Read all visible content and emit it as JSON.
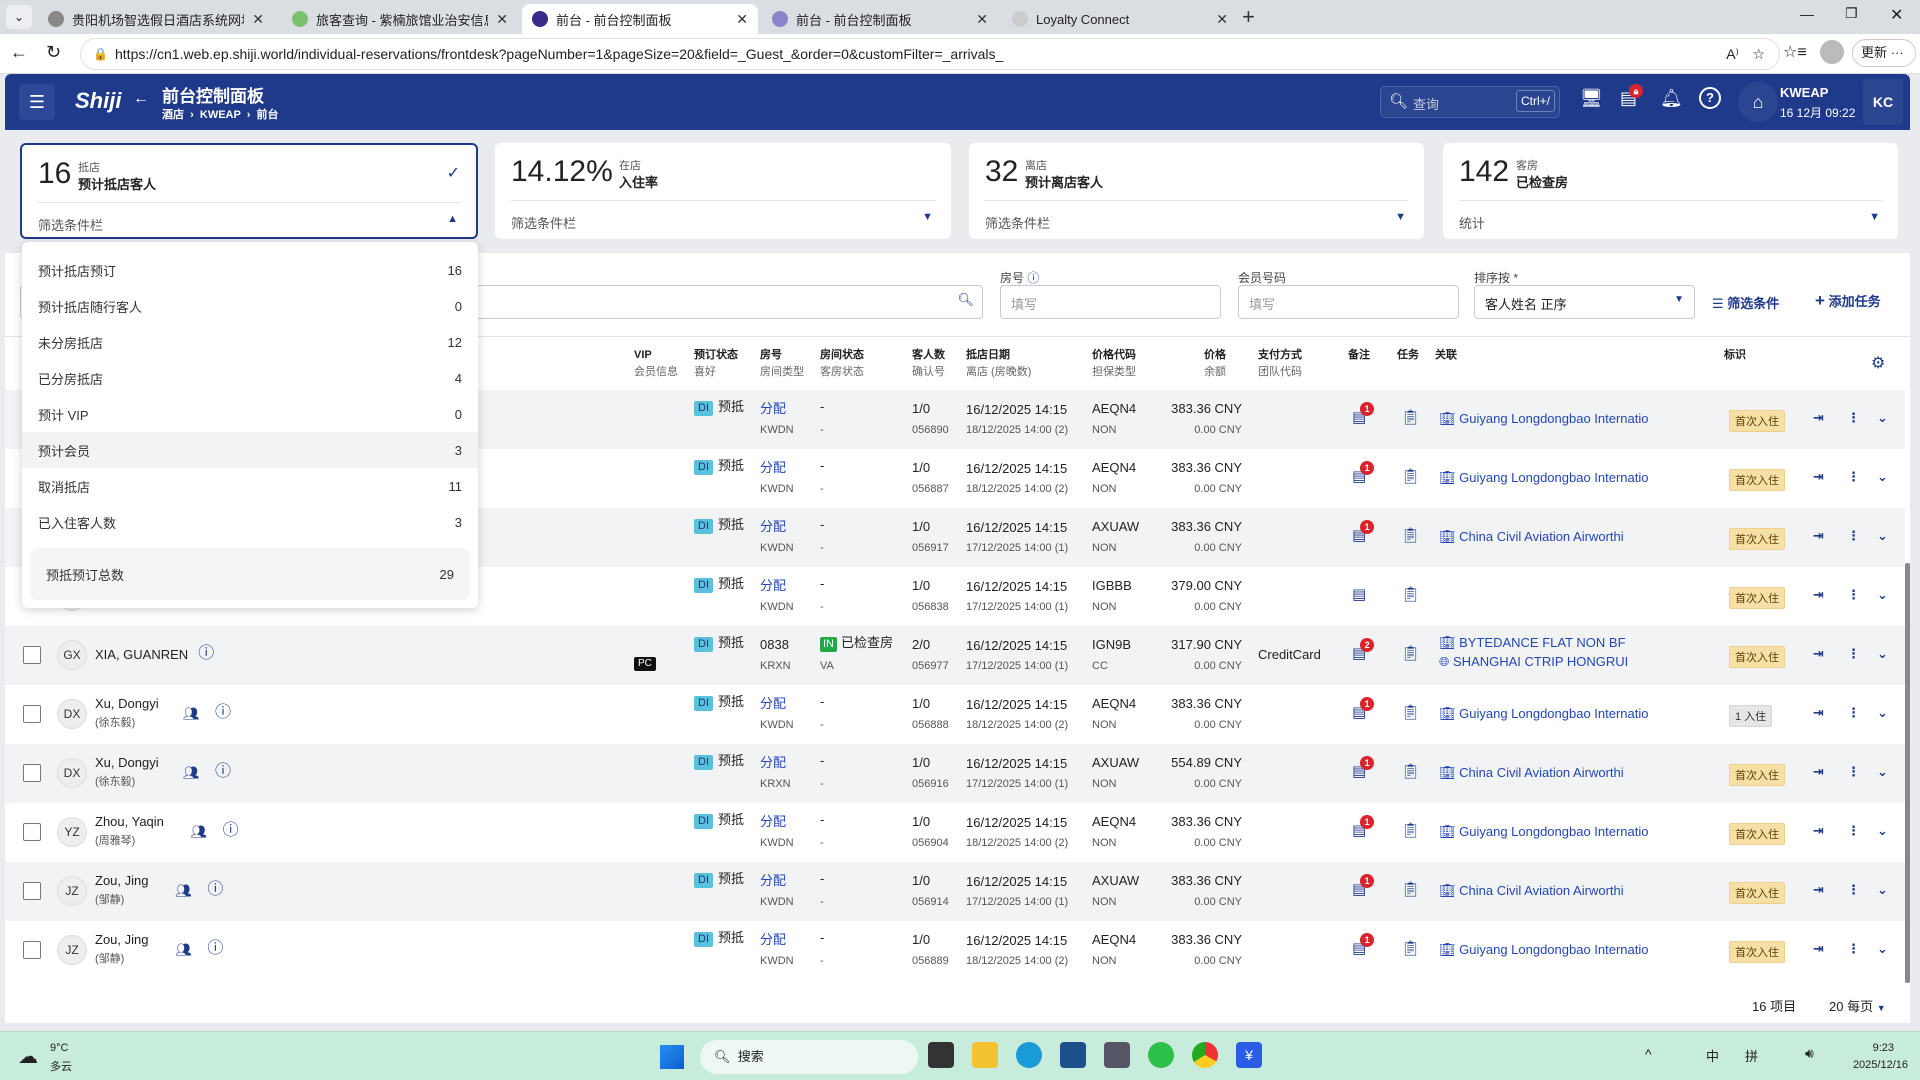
{
  "browser": {
    "tabs": [
      {
        "title": "贵阳机场智选假日酒店系统网址导",
        "active": false,
        "favicon": "globe-icon",
        "color": "#888"
      },
      {
        "title": "旅客查询 - 紫楠旅馆业治安信息管",
        "active": false,
        "favicon": "swirl-icon",
        "color": "#7bc26f"
      },
      {
        "title": "前台 - 前台控制面板",
        "active": true,
        "favicon": "shiji-icon",
        "color": "#3a2a8a"
      },
      {
        "title": "前台 - 前台控制面板",
        "active": false,
        "favicon": "shiji-icon",
        "color": "#8c84c8"
      },
      {
        "title": "Loyalty Connect",
        "active": false,
        "favicon": "page-icon",
        "color": "#ccc"
      }
    ],
    "url": "https://cn1.web.ep.shiji.world/individual-reservations/frontdesk?pageNumber=1&pageSize=20&field=_Guest_&order=0&customFilter=_arrivals_",
    "update_label": "更新"
  },
  "header": {
    "logo": "Shiji",
    "title": "前台控制面板",
    "breadcrumb": [
      "酒店",
      "KWEAP",
      "前台"
    ],
    "search_placeholder": "查询",
    "search_shortcut": "Ctrl+/",
    "property": "KWEAP",
    "datetime": "16 12月 09:22",
    "user_initials": "KC",
    "notification_badge": "1"
  },
  "cards": [
    {
      "value": "16",
      "small": "抵店",
      "label": "预计抵店客人",
      "filter": "筛选条件栏",
      "selected": true
    },
    {
      "value": "14.12%",
      "small": "在店",
      "label": "入住率",
      "filter": "筛选条件栏"
    },
    {
      "value": "32",
      "small": "离店",
      "label": "预计离店客人",
      "filter": "筛选条件栏"
    },
    {
      "value": "142",
      "small": "客房",
      "label": "已检查房",
      "filter": "统计"
    }
  ],
  "dropdown": {
    "items": [
      {
        "label": "预计抵店预订",
        "count": "16"
      },
      {
        "label": "预计抵店随行客人",
        "count": "0"
      },
      {
        "label": "未分房抵店",
        "count": "12"
      },
      {
        "label": "已分房抵店",
        "count": "4"
      },
      {
        "label": "预计 VIP",
        "count": "0"
      },
      {
        "label": "预计会员",
        "count": "3",
        "highlighted": true
      },
      {
        "label": "取消抵店",
        "count": "11"
      },
      {
        "label": "已入住客人数",
        "count": "3"
      }
    ],
    "total_label": "预抵预订总数",
    "total_count": "29"
  },
  "filters": {
    "room_label": "房号",
    "room_placeholder": "填写",
    "member_label": "会员号码",
    "member_placeholder": "填写",
    "sort_label": "排序按 *",
    "sort_value": "客人姓名 正序",
    "filter_button": "筛选条件",
    "add_task_button": "添加任务"
  },
  "table": {
    "headers": [
      {
        "top": "VIP",
        "bottom": "会员信息"
      },
      {
        "top": "预订状态",
        "bottom": "喜好"
      },
      {
        "top": "房号",
        "bottom": "房间类型"
      },
      {
        "top": "房间状态",
        "bottom": "客房状态"
      },
      {
        "top": "客人数",
        "bottom": "确认号"
      },
      {
        "top": "抵店日期",
        "bottom": "离店 (房晚数)"
      },
      {
        "top": "价格代码",
        "bottom": "担保类型"
      },
      {
        "top": "价格",
        "bottom": "余额"
      },
      {
        "top": "支付方式",
        "bottom": "团队代码"
      },
      {
        "top": "备注",
        "bottom": ""
      },
      {
        "top": "任务",
        "bottom": ""
      },
      {
        "top": "关联",
        "bottom": ""
      },
      {
        "top": "标识",
        "bottom": ""
      }
    ],
    "rows": [
      {
        "name": "",
        "cn": "",
        "initials": "",
        "group": false,
        "vip": "",
        "status_code": "DI",
        "status": "预抵",
        "room": "分配",
        "room_type": "KWDN",
        "room_status": "-",
        "hk_status": "-",
        "guests": "1/0",
        "conf": "056890",
        "arrival": "16/12/2025 14:15",
        "departure": "18/12/2025 14:00 (2)",
        "rate": "AEQN4",
        "guarantee": "NON",
        "price": "383.36 CNY",
        "balance": "0.00 CNY",
        "payment": "",
        "notes": "1",
        "links": [
          "Guiyang Longdongbao Internatio"
        ],
        "tag": "首次入住"
      },
      {
        "name": "",
        "cn": "",
        "initials": "",
        "group": false,
        "vip": "",
        "status_code": "DI",
        "status": "预抵",
        "room": "分配",
        "room_type": "KWDN",
        "room_status": "-",
        "hk_status": "-",
        "guests": "1/0",
        "conf": "056887",
        "arrival": "16/12/2025 14:15",
        "departure": "18/12/2025 14:00 (2)",
        "rate": "AEQN4",
        "guarantee": "NON",
        "price": "383.36 CNY",
        "balance": "0.00 CNY",
        "payment": "",
        "notes": "1",
        "links": [
          "Guiyang Longdongbao Internatio"
        ],
        "tag": "首次入住"
      },
      {
        "name": "",
        "cn": "",
        "initials": "",
        "group": false,
        "vip": "",
        "status_code": "DI",
        "status": "预抵",
        "room": "分配",
        "room_type": "KWDN",
        "room_status": "-",
        "hk_status": "-",
        "guests": "1/0",
        "conf": "056917",
        "arrival": "16/12/2025 14:15",
        "departure": "17/12/2025 14:00 (1)",
        "rate": "AXUAW",
        "guarantee": "NON",
        "price": "383.36 CNY",
        "balance": "0.00 CNY",
        "payment": "",
        "notes": "1",
        "links": [
          "China Civil Aviation Airworthi"
        ],
        "tag": "首次入住"
      },
      {
        "name": "",
        "cn": "",
        "initials": "",
        "group": false,
        "vip": "",
        "status_code": "DI",
        "status": "预抵",
        "room": "分配",
        "room_type": "KWDN",
        "room_status": "-",
        "hk_status": "-",
        "guests": "1/0",
        "conf": "056838",
        "arrival": "16/12/2025 14:15",
        "departure": "17/12/2025 14:00 (1)",
        "rate": "IGBBB",
        "guarantee": "NON",
        "price": "379.00 CNY",
        "balance": "0.00 CNY",
        "payment": "",
        "notes": "",
        "links": [],
        "tag": "首次入住"
      },
      {
        "name": "XIA, GUANREN",
        "cn": "",
        "initials": "GX",
        "group": false,
        "vip": "PC",
        "status_code": "DI",
        "status": "预抵",
        "room": "0838",
        "room_type": "KRXN",
        "room_status_badge": "IN",
        "room_status": "已检查房",
        "hk_status": "VA",
        "guests": "2/0",
        "conf": "056977",
        "arrival": "16/12/2025 14:15",
        "departure": "17/12/2025 14:00 (1)",
        "rate": "IGN9B",
        "guarantee": "CC",
        "price": "317.90 CNY",
        "balance": "0.00 CNY",
        "payment": "CreditCard",
        "notes": "2",
        "links": [
          "BYTEDANCE FLAT NON BF",
          "SHANGHAI CTRIP HONGRUI"
        ],
        "tag": "首次入住"
      },
      {
        "name": "Xu, Dongyi",
        "cn": "(徐东毅)",
        "initials": "DX",
        "group": true,
        "vip": "",
        "status_code": "DI",
        "status": "预抵",
        "room": "分配",
        "room_type": "KWDN",
        "room_status": "-",
        "hk_status": "-",
        "guests": "1/0",
        "conf": "056888",
        "arrival": "16/12/2025 14:15",
        "departure": "18/12/2025 14:00 (2)",
        "rate": "AEQN4",
        "guarantee": "NON",
        "price": "383.36 CNY",
        "balance": "0.00 CNY",
        "payment": "",
        "notes": "1",
        "links": [
          "Guiyang Longdongbao Internatio"
        ],
        "tag": "1 入住",
        "tag_grey": true
      },
      {
        "name": "Xu, Dongyi",
        "cn": "(徐东毅)",
        "initials": "DX",
        "group": true,
        "vip": "",
        "status_code": "DI",
        "status": "预抵",
        "room": "分配",
        "room_type": "KRXN",
        "room_status": "-",
        "hk_status": "-",
        "guests": "1/0",
        "conf": "056916",
        "arrival": "16/12/2025 14:15",
        "departure": "17/12/2025 14:00 (1)",
        "rate": "AXUAW",
        "guarantee": "NON",
        "price": "554.89 CNY",
        "balance": "0.00 CNY",
        "payment": "",
        "notes": "1",
        "links": [
          "China Civil Aviation Airworthi"
        ],
        "tag": "首次入住"
      },
      {
        "name": "Zhou, Yaqin",
        "cn": "(周雅琴)",
        "initials": "YZ",
        "group": true,
        "vip": "",
        "status_code": "DI",
        "status": "预抵",
        "room": "分配",
        "room_type": "KWDN",
        "room_status": "-",
        "hk_status": "-",
        "guests": "1/0",
        "conf": "056904",
        "arrival": "16/12/2025 14:15",
        "departure": "18/12/2025 14:00 (2)",
        "rate": "AEQN4",
        "guarantee": "NON",
        "price": "383.36 CNY",
        "balance": "0.00 CNY",
        "payment": "",
        "notes": "1",
        "links": [
          "Guiyang Longdongbao Internatio"
        ],
        "tag": "首次入住"
      },
      {
        "name": "Zou, Jing",
        "cn": "(邹静)",
        "initials": "JZ",
        "group": true,
        "vip": "",
        "status_code": "DI",
        "status": "预抵",
        "room": "分配",
        "room_type": "KWDN",
        "room_status": "-",
        "hk_status": "-",
        "guests": "1/0",
        "conf": "056914",
        "arrival": "16/12/2025 14:15",
        "departure": "17/12/2025 14:00 (1)",
        "rate": "AXUAW",
        "guarantee": "NON",
        "price": "383.36 CNY",
        "balance": "0.00 CNY",
        "payment": "",
        "notes": "1",
        "links": [
          "China Civil Aviation Airworthi"
        ],
        "tag": "首次入住"
      },
      {
        "name": "Zou, Jing",
        "cn": "(邹静)",
        "initials": "JZ",
        "group": true,
        "vip": "",
        "status_code": "DI",
        "status": "预抵",
        "room": "分配",
        "room_type": "KWDN",
        "room_status": "-",
        "hk_status": "-",
        "guests": "1/0",
        "conf": "056889",
        "arrival": "16/12/2025 14:15",
        "departure": "18/12/2025 14:00 (2)",
        "rate": "AEQN4",
        "guarantee": "NON",
        "price": "383.36 CNY",
        "balance": "0.00 CNY",
        "payment": "",
        "notes": "1",
        "links": [
          "Guiyang Longdongbao Internatio"
        ],
        "tag": "首次入住"
      }
    ]
  },
  "footer": {
    "count": "16 项目",
    "page_size": "20 每页"
  },
  "taskbar": {
    "temp": "9°C",
    "weather": "多云",
    "search": "搜索",
    "ime1": "中",
    "ime2": "拼",
    "time": "9:23",
    "date": "2025/12/16"
  },
  "colors": {
    "brand": "#1f3a8a",
    "tag": "#f7dfa8",
    "badge": "#d9232d"
  }
}
